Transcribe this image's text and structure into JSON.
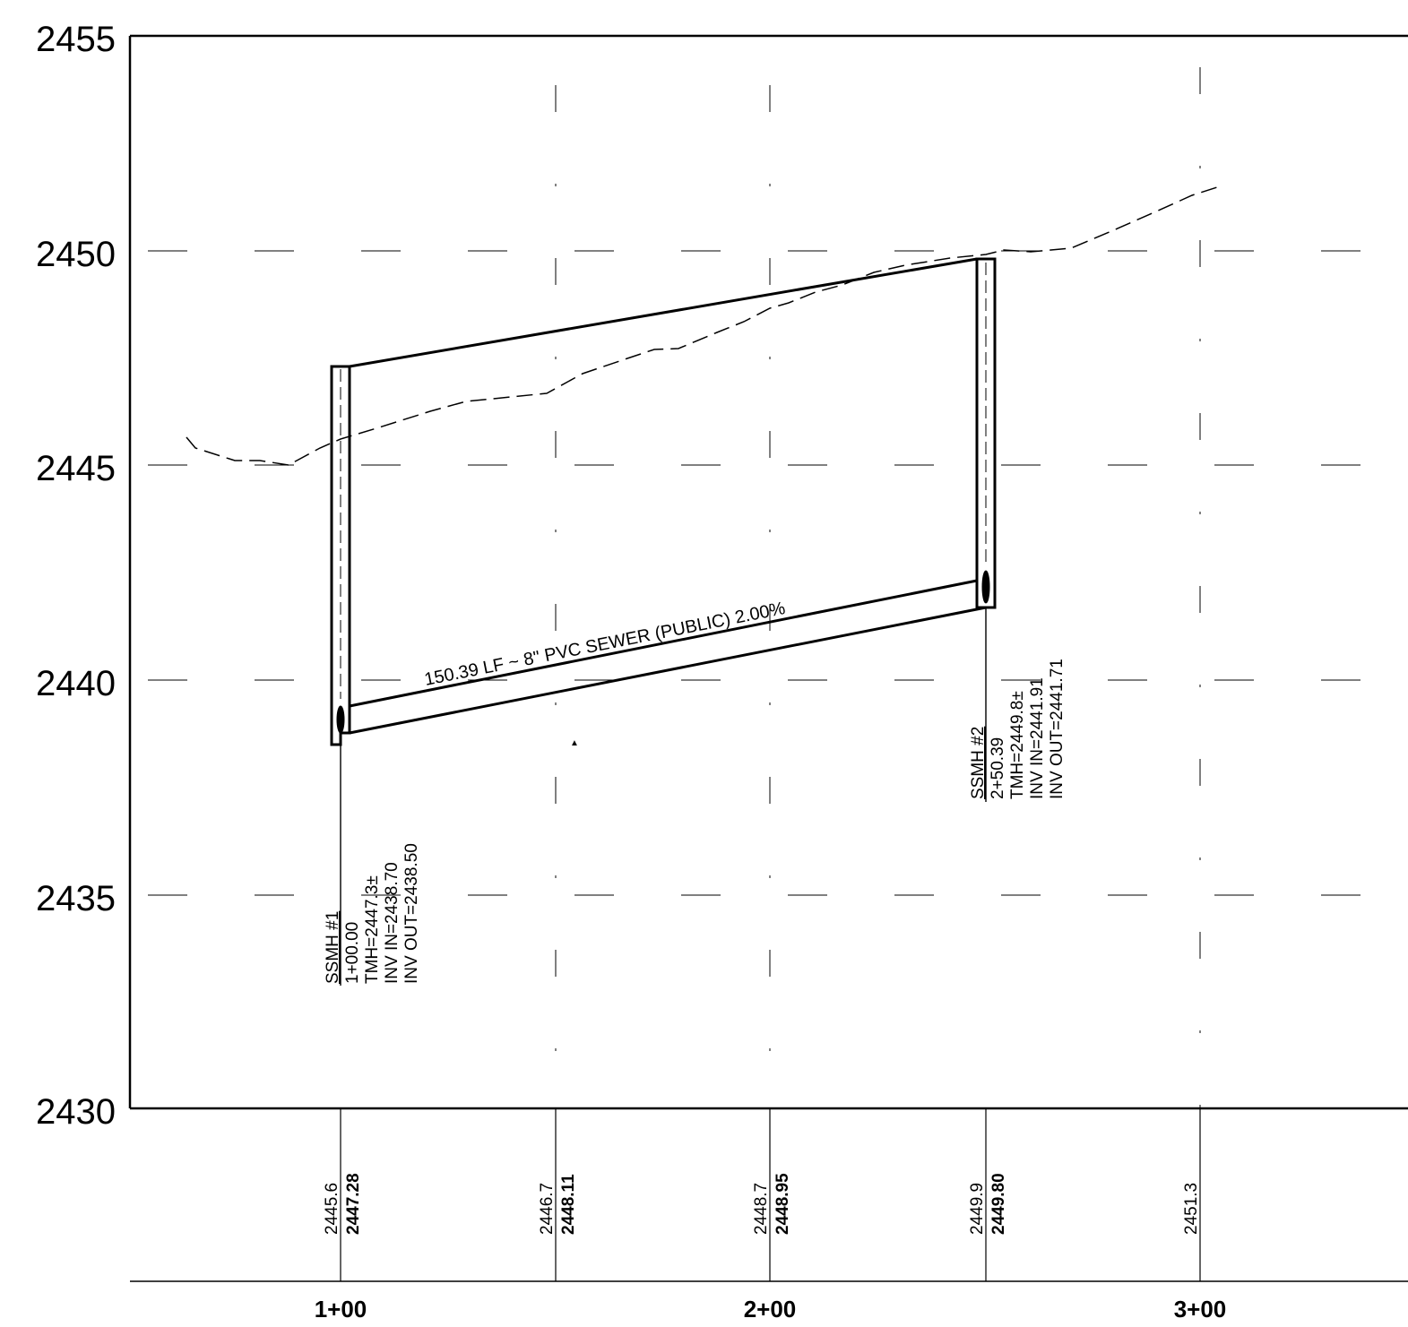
{
  "profile": {
    "elevation_axis": {
      "min": 2430,
      "max": 2455,
      "ticks": [
        "2455",
        "2450",
        "2445",
        "2440",
        "2435",
        "2430"
      ]
    },
    "station_axis": {
      "labels": [
        "1+00",
        "2+00",
        "3+00"
      ]
    },
    "station_columns": [
      {
        "existing": "2445.6",
        "proposed": "2447.28"
      },
      {
        "existing": "2446.7",
        "proposed": "2448.11"
      },
      {
        "existing": "2448.7",
        "proposed": "2448.95"
      },
      {
        "existing": "2449.9",
        "proposed": "2449.80"
      },
      {
        "existing": "2451.3",
        "proposed": ""
      }
    ],
    "manholes": [
      {
        "name": "SSMH #1",
        "station": "1+00.00",
        "tmh": "TMH=2447.3±",
        "inv_in": "INV IN=2438.70",
        "inv_out": "INV OUT=2438.50"
      },
      {
        "name": "SSMH #2",
        "station": "2+50.39",
        "tmh": "TMH=2449.8±",
        "inv_in": "INV IN=2441.91",
        "inv_out": "INV OUT=2441.71"
      }
    ],
    "pipe_label": "150.39 LF ~ 8\" PVC SEWER (PUBLIC) 2.00%",
    "existing_ground": [
      [
        2445.75,
        0.7
      ],
      [
        2445.15,
        0.8
      ],
      [
        2445.0,
        0.9
      ],
      [
        2445.6,
        1.0
      ],
      [
        2446.3,
        1.25
      ],
      [
        2446.7,
        1.5
      ],
      [
        2447.7,
        1.75
      ],
      [
        2448.7,
        2.0
      ],
      [
        2449.5,
        2.25
      ],
      [
        2449.9,
        2.5
      ],
      [
        2450.0,
        2.7
      ],
      [
        2451.3,
        3.0
      ]
    ]
  }
}
